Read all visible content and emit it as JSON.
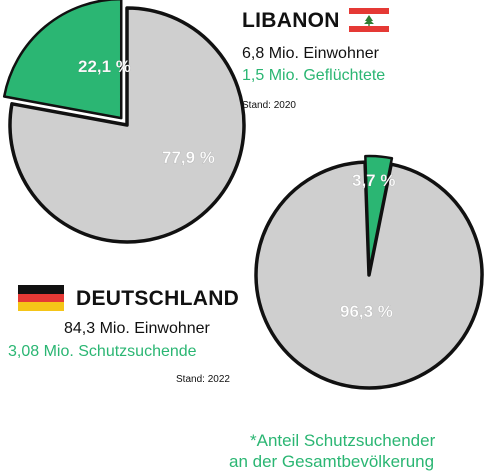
{
  "colors": {
    "refugee": "#2bb673",
    "population": "#cfcfcf",
    "outline": "#111111",
    "accent_text": "#2bb673"
  },
  "lebanon": {
    "country": "LIBANON",
    "flag_icon": "lebanon-flag-icon",
    "population_text": "6,8 Mio. Einwohner",
    "refugees_text": "1,5 Mio. Geflüchtete",
    "stand_text": "Stand: 2020"
  },
  "germany": {
    "country": "DEUTSCHLAND",
    "flag_icon": "germany-flag-icon",
    "population_text": "84,3 Mio. Einwohner",
    "refugees_text": "3,08 Mio. Schutzsuchende",
    "stand_text": "Stand: 2022"
  },
  "footnote": {
    "line1": "*Anteil Schutzsuchender",
    "line2": "an der Gesamtbevölkerung"
  },
  "chart_data": [
    {
      "type": "pie",
      "title": "LIBANON",
      "slices": [
        {
          "label": "22,1 %",
          "value": 22.1,
          "color": "#2bb673"
        },
        {
          "label": "77,9 %",
          "value": 77.9,
          "color": "#cfcfcf"
        }
      ]
    },
    {
      "type": "pie",
      "title": "DEUTSCHLAND",
      "slices": [
        {
          "label": "3,7 %",
          "value": 3.7,
          "color": "#2bb673"
        },
        {
          "label": "96,3 %",
          "value": 96.3,
          "color": "#cfcfcf"
        }
      ]
    }
  ]
}
